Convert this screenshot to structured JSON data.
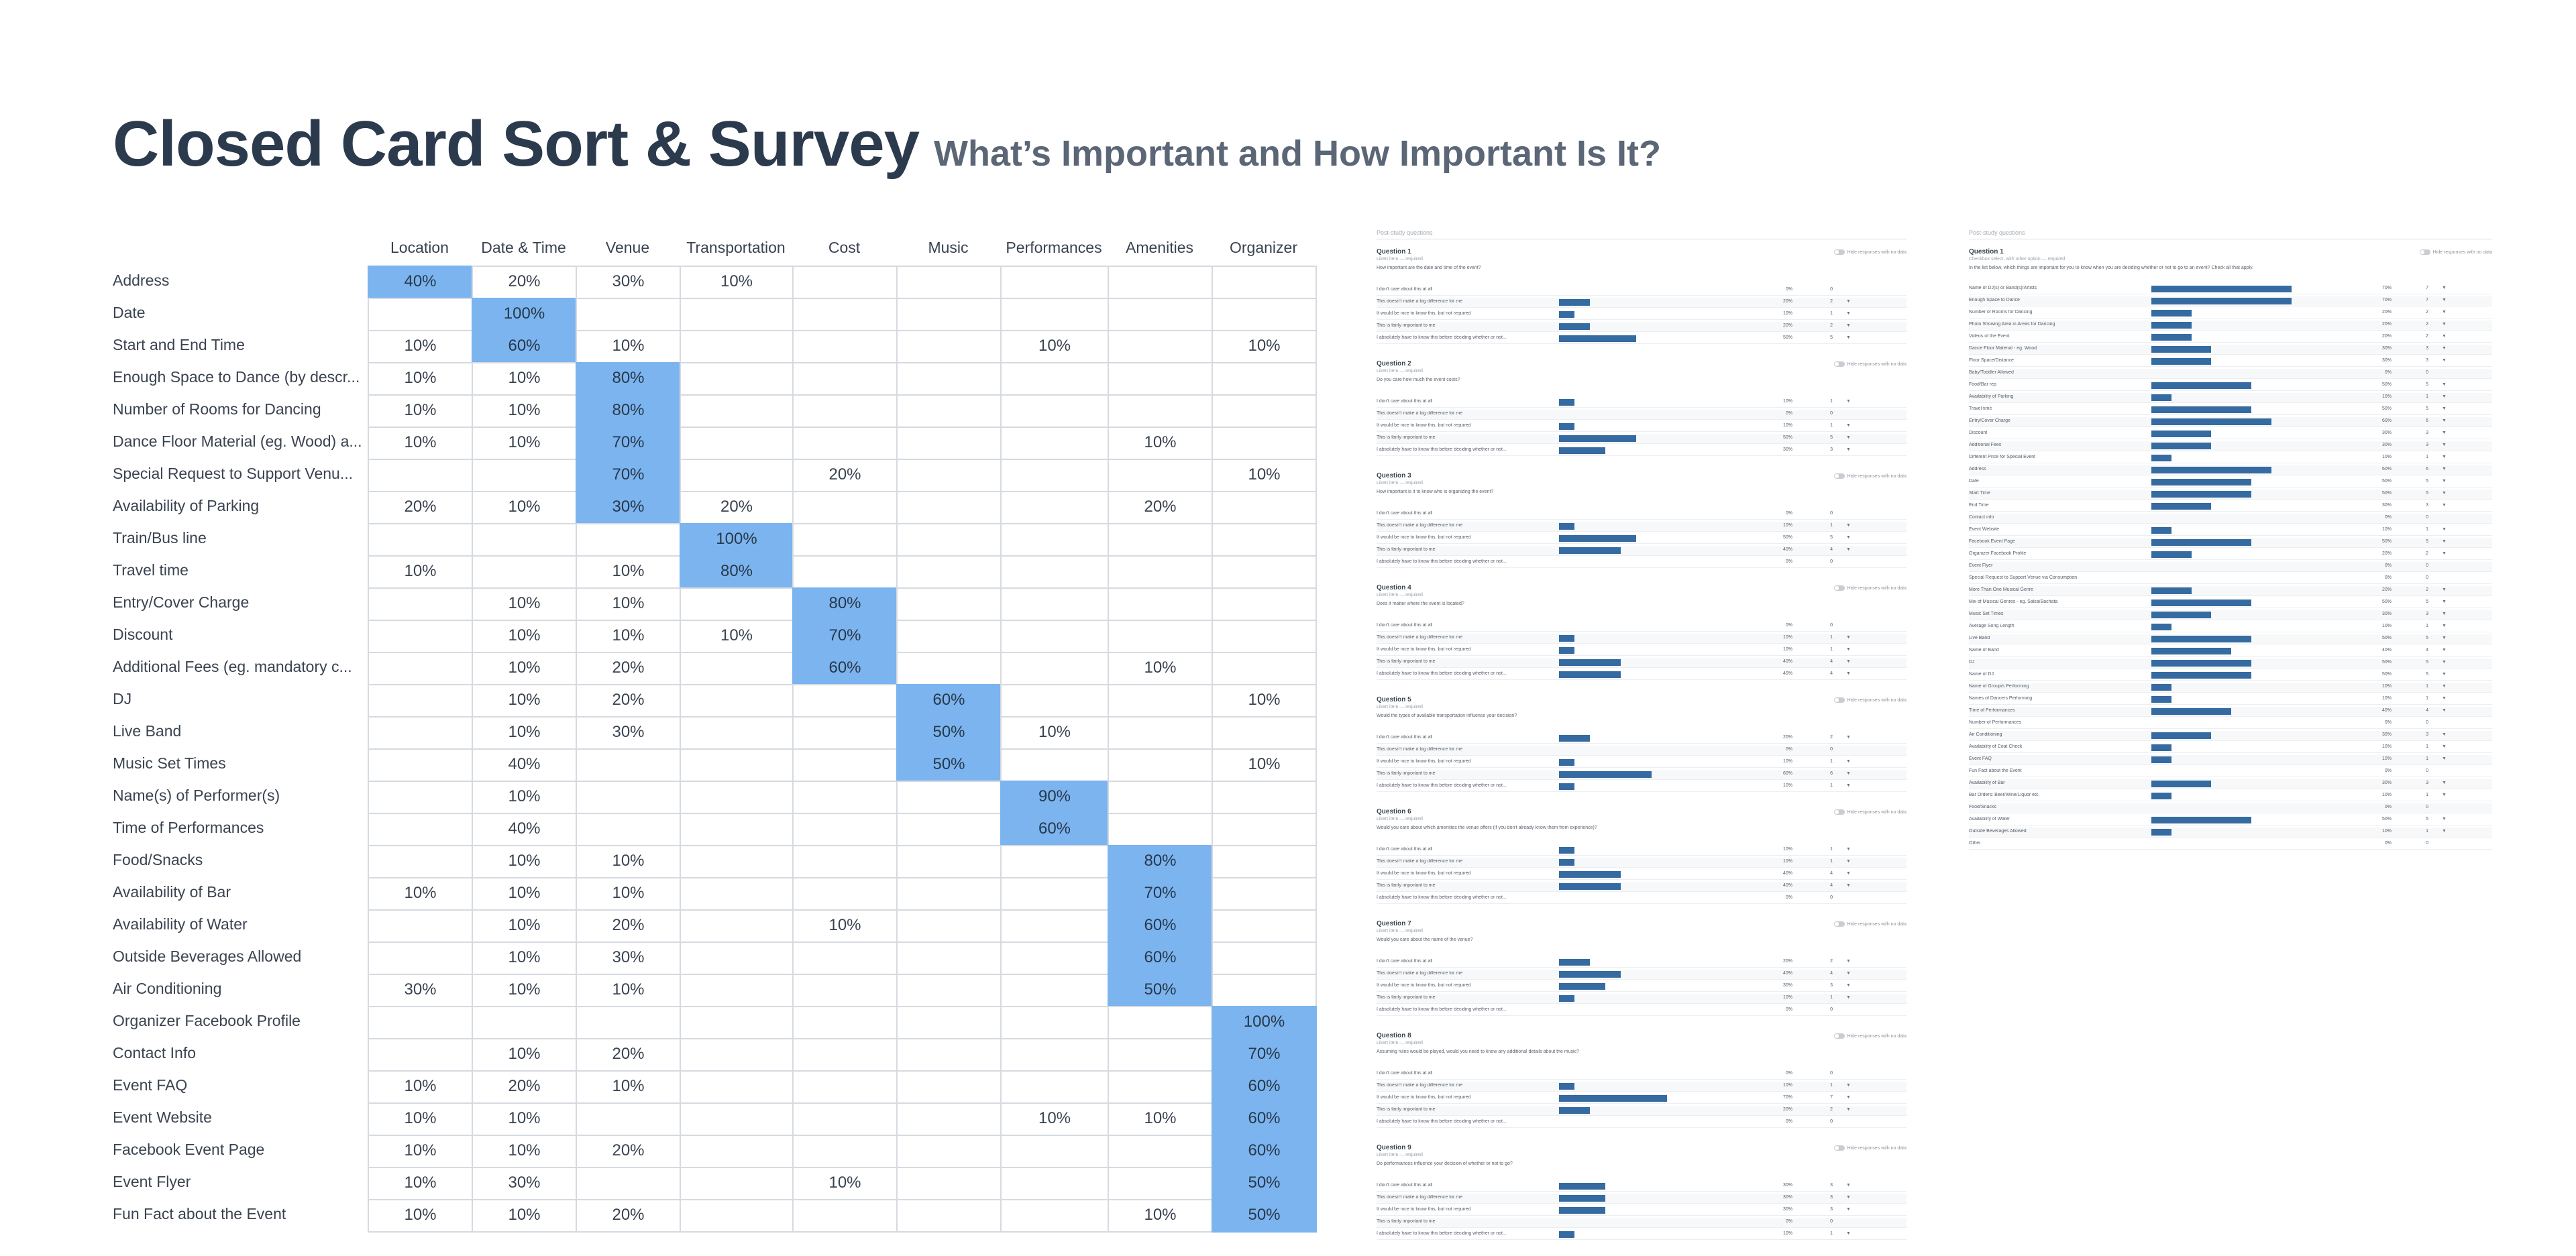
{
  "title": "Closed Card Sort & Survey",
  "subtitle": "What’s Important and How Important Is It?",
  "matrix": {
    "columns": [
      "Location",
      "Date & Time",
      "Venue",
      "Transportation",
      "Cost",
      "Music",
      "Performances",
      "Amenities",
      "Organizer"
    ],
    "rows": [
      {
        "label": "Address",
        "cells": [
          "40%",
          "20%",
          "30%",
          "10%",
          "",
          "",
          "",
          "",
          ""
        ],
        "hi": 0
      },
      {
        "label": "Date",
        "cells": [
          "",
          "100%",
          "",
          "",
          "",
          "",
          "",
          "",
          ""
        ],
        "hi": 1
      },
      {
        "label": "Start and End Time",
        "cells": [
          "10%",
          "60%",
          "10%",
          "",
          "",
          "",
          "10%",
          "",
          "10%"
        ],
        "hi": 1
      },
      {
        "label": "Enough Space to Dance (by descr...",
        "cells": [
          "10%",
          "10%",
          "80%",
          "",
          "",
          "",
          "",
          "",
          ""
        ],
        "hi": 2
      },
      {
        "label": "Number of Rooms for Dancing",
        "cells": [
          "10%",
          "10%",
          "80%",
          "",
          "",
          "",
          "",
          "",
          ""
        ],
        "hi": 2
      },
      {
        "label": "Dance Floor Material (eg. Wood) a...",
        "cells": [
          "10%",
          "10%",
          "70%",
          "",
          "",
          "",
          "",
          "10%",
          ""
        ],
        "hi": 2
      },
      {
        "label": "Special Request to Support Venu...",
        "cells": [
          "",
          "",
          "70%",
          "",
          "20%",
          "",
          "",
          "",
          "10%"
        ],
        "hi": 2
      },
      {
        "label": "Availability of Parking",
        "cells": [
          "20%",
          "10%",
          "30%",
          "20%",
          "",
          "",
          "",
          "20%",
          ""
        ],
        "hi": 2
      },
      {
        "label": "Train/Bus line",
        "cells": [
          "",
          "",
          "",
          "100%",
          "",
          "",
          "",
          "",
          ""
        ],
        "hi": 3
      },
      {
        "label": "Travel time",
        "cells": [
          "10%",
          "",
          "10%",
          "80%",
          "",
          "",
          "",
          "",
          ""
        ],
        "hi": 3
      },
      {
        "label": "Entry/Cover Charge",
        "cells": [
          "",
          "10%",
          "10%",
          "",
          "80%",
          "",
          "",
          "",
          ""
        ],
        "hi": 4
      },
      {
        "label": "Discount",
        "cells": [
          "",
          "10%",
          "10%",
          "10%",
          "70%",
          "",
          "",
          "",
          ""
        ],
        "hi": 4
      },
      {
        "label": "Additional Fees (eg. mandatory c...",
        "cells": [
          "",
          "10%",
          "20%",
          "",
          "60%",
          "",
          "",
          "10%",
          ""
        ],
        "hi": 4
      },
      {
        "label": "DJ",
        "cells": [
          "",
          "10%",
          "20%",
          "",
          "",
          "60%",
          "",
          "",
          "10%"
        ],
        "hi": 5
      },
      {
        "label": "Live Band",
        "cells": [
          "",
          "10%",
          "30%",
          "",
          "",
          "50%",
          "10%",
          "",
          ""
        ],
        "hi": 5
      },
      {
        "label": "Music Set Times",
        "cells": [
          "",
          "40%",
          "",
          "",
          "",
          "50%",
          "",
          "",
          "10%"
        ],
        "hi": 5
      },
      {
        "label": "Name(s) of Performer(s)",
        "cells": [
          "",
          "10%",
          "",
          "",
          "",
          "",
          "90%",
          "",
          ""
        ],
        "hi": 6
      },
      {
        "label": "Time of Performances",
        "cells": [
          "",
          "40%",
          "",
          "",
          "",
          "",
          "60%",
          "",
          ""
        ],
        "hi": 6
      },
      {
        "label": "Food/Snacks",
        "cells": [
          "",
          "10%",
          "10%",
          "",
          "",
          "",
          "",
          "80%",
          ""
        ],
        "hi": 7
      },
      {
        "label": "Availability of Bar",
        "cells": [
          "10%",
          "10%",
          "10%",
          "",
          "",
          "",
          "",
          "70%",
          ""
        ],
        "hi": 7
      },
      {
        "label": "Availability of Water",
        "cells": [
          "",
          "10%",
          "20%",
          "",
          "10%",
          "",
          "",
          "60%",
          ""
        ],
        "hi": 7
      },
      {
        "label": "Outside Beverages Allowed",
        "cells": [
          "",
          "10%",
          "30%",
          "",
          "",
          "",
          "",
          "60%",
          ""
        ],
        "hi": 7
      },
      {
        "label": "Air Conditioning",
        "cells": [
          "30%",
          "10%",
          "10%",
          "",
          "",
          "",
          "",
          "50%",
          ""
        ],
        "hi": 7
      },
      {
        "label": "Organizer Facebook Profile",
        "cells": [
          "",
          "",
          "",
          "",
          "",
          "",
          "",
          "",
          "100%"
        ],
        "hi": 8
      },
      {
        "label": "Contact Info",
        "cells": [
          "",
          "10%",
          "20%",
          "",
          "",
          "",
          "",
          "",
          "70%"
        ],
        "hi": 8
      },
      {
        "label": "Event FAQ",
        "cells": [
          "10%",
          "20%",
          "10%",
          "",
          "",
          "",
          "",
          "",
          "60%"
        ],
        "hi": 8
      },
      {
        "label": "Event Website",
        "cells": [
          "10%",
          "10%",
          "",
          "",
          "",
          "",
          "10%",
          "10%",
          "60%"
        ],
        "hi": 8
      },
      {
        "label": "Facebook Event Page",
        "cells": [
          "10%",
          "10%",
          "20%",
          "",
          "",
          "",
          "",
          "",
          "60%"
        ],
        "hi": 8
      },
      {
        "label": "Event Flyer",
        "cells": [
          "10%",
          "30%",
          "",
          "",
          "10%",
          "",
          "",
          "",
          "50%"
        ],
        "hi": 8
      },
      {
        "label": "Fun Fact about the Event",
        "cells": [
          "10%",
          "10%",
          "20%",
          "",
          "",
          "",
          "",
          "10%",
          "50%"
        ],
        "hi": 8
      }
    ]
  },
  "survey_panel": {
    "header": "Post-study questions",
    "toggle_label": "Hide responses with no data",
    "answer_labels": [
      "I don't care about this at all",
      "This doesn't make a big difference for me",
      "It would be nice to know this, but not required",
      "This is fairly important to me",
      "I absolutely have to know this before deciding whether or not..."
    ],
    "questions": [
      {
        "title": "Question 1",
        "meta": "Likert item — required",
        "text": "How important are the date and time of the event?",
        "pct": [
          0,
          20,
          10,
          20,
          50
        ],
        "pct_text": [
          "0%",
          "20%",
          "10%",
          "20%",
          "50%"
        ],
        "cnt": [
          "0",
          "2",
          "1",
          "2",
          "5"
        ]
      },
      {
        "title": "Question 2",
        "meta": "Likert item — required",
        "text": "Do you care how much the event costs?",
        "pct": [
          10,
          0,
          10,
          50,
          30
        ],
        "pct_text": [
          "10%",
          "0%",
          "10%",
          "50%",
          "30%"
        ],
        "cnt": [
          "1",
          "0",
          "1",
          "5",
          "3"
        ]
      },
      {
        "title": "Question 3",
        "meta": "Likert item — required",
        "text": "How important is it to know who is organizing the event?",
        "pct": [
          0,
          10,
          50,
          40,
          0
        ],
        "pct_text": [
          "0%",
          "10%",
          "50%",
          "40%",
          "0%"
        ],
        "cnt": [
          "0",
          "1",
          "5",
          "4",
          "0"
        ]
      },
      {
        "title": "Question 4",
        "meta": "Likert item — required",
        "text": "Does it matter where the event is located?",
        "pct": [
          0,
          10,
          10,
          40,
          40
        ],
        "pct_text": [
          "0%",
          "10%",
          "10%",
          "40%",
          "40%"
        ],
        "cnt": [
          "0",
          "1",
          "1",
          "4",
          "4"
        ]
      },
      {
        "title": "Question 5",
        "meta": "Likert item — required",
        "text": "Would the types of available transportation influence your decision?",
        "pct": [
          20,
          0,
          10,
          60,
          10
        ],
        "pct_text": [
          "20%",
          "0%",
          "10%",
          "60%",
          "10%"
        ],
        "cnt": [
          "2",
          "0",
          "1",
          "6",
          "1"
        ]
      },
      {
        "title": "Question 6",
        "meta": "Likert item — required",
        "text": "Would you care about which amenities the venue offers (if you don't already know them from experience)?",
        "pct": [
          10,
          10,
          40,
          40,
          0
        ],
        "pct_text": [
          "10%",
          "10%",
          "40%",
          "40%",
          "0%"
        ],
        "cnt": [
          "1",
          "1",
          "4",
          "4",
          "0"
        ]
      },
      {
        "title": "Question 7",
        "meta": "Likert item — required",
        "text": "Would you care about the name of the venue?",
        "pct": [
          20,
          40,
          30,
          10,
          0
        ],
        "pct_text": [
          "20%",
          "40%",
          "30%",
          "10%",
          "0%"
        ],
        "cnt": [
          "2",
          "4",
          "3",
          "1",
          "0"
        ]
      },
      {
        "title": "Question 8",
        "meta": "Likert item — required",
        "text": "Assuming rules would be played, would you need to know any additional details about the music?",
        "pct": [
          0,
          10,
          70,
          20,
          0
        ],
        "pct_text": [
          "0%",
          "10%",
          "70%",
          "20%",
          "0%"
        ],
        "cnt": [
          "0",
          "1",
          "7",
          "2",
          "0"
        ]
      },
      {
        "title": "Question 9",
        "meta": "Likert item — required",
        "text": "Do performances influence your decision of whether or not to go?",
        "pct": [
          30,
          30,
          30,
          0,
          10
        ],
        "pct_text": [
          "30%",
          "30%",
          "30%",
          "0%",
          "10%"
        ],
        "cnt": [
          "3",
          "3",
          "3",
          "0",
          "1"
        ]
      }
    ]
  },
  "ranking_panel": {
    "header": "Post-study questions",
    "toggle_label": "Hide responses with no data",
    "title": "Question 1",
    "meta": "Checkbox select, with other option — required",
    "text": "In the list below, which things are important for you to know when you are deciding whether or not to go to an event? Check all that apply.",
    "items": [
      {
        "label": "Name of DJ(s) or Band(s)/Artists",
        "pct": 70,
        "pct_text": "70%",
        "cnt": "7"
      },
      {
        "label": "Enough Space to Dance",
        "pct": 70,
        "pct_text": "70%",
        "cnt": "7"
      },
      {
        "label": "Number of Rooms for Dancing",
        "pct": 20,
        "pct_text": "20%",
        "cnt": "2"
      },
      {
        "label": "Photo Showing Area in Areas for Dancing",
        "pct": 20,
        "pct_text": "20%",
        "cnt": "2"
      },
      {
        "label": "Videos of the Event",
        "pct": 20,
        "pct_text": "20%",
        "cnt": "2"
      },
      {
        "label": "Dance Floor Material - eg. Wood",
        "pct": 30,
        "pct_text": "30%",
        "cnt": "3"
      },
      {
        "label": "Floor Space/Distance",
        "pct": 30,
        "pct_text": "30%",
        "cnt": "3"
      },
      {
        "label": "Baby/Toddler Allowed",
        "pct": 0,
        "pct_text": "0%",
        "cnt": "0"
      },
      {
        "label": "Food/Bar rep",
        "pct": 50,
        "pct_text": "50%",
        "cnt": "5"
      },
      {
        "label": "Availability of Parking",
        "pct": 10,
        "pct_text": "10%",
        "cnt": "1"
      },
      {
        "label": "Travel time",
        "pct": 50,
        "pct_text": "50%",
        "cnt": "5"
      },
      {
        "label": "Entry/Cover Charge",
        "pct": 60,
        "pct_text": "60%",
        "cnt": "6"
      },
      {
        "label": "Discount",
        "pct": 30,
        "pct_text": "30%",
        "cnt": "3"
      },
      {
        "label": "Additional Fees",
        "pct": 30,
        "pct_text": "30%",
        "cnt": "3"
      },
      {
        "label": "Different Price for Special Event",
        "pct": 10,
        "pct_text": "10%",
        "cnt": "1"
      },
      {
        "label": "Address",
        "pct": 60,
        "pct_text": "60%",
        "cnt": "6"
      },
      {
        "label": "Date",
        "pct": 50,
        "pct_text": "50%",
        "cnt": "5"
      },
      {
        "label": "Start Time",
        "pct": 50,
        "pct_text": "50%",
        "cnt": "5"
      },
      {
        "label": "End Time",
        "pct": 30,
        "pct_text": "30%",
        "cnt": "3"
      },
      {
        "label": "Contact info",
        "pct": 0,
        "pct_text": "0%",
        "cnt": "0"
      },
      {
        "label": "Event Website",
        "pct": 10,
        "pct_text": "10%",
        "cnt": "1"
      },
      {
        "label": "Facebook Event Page",
        "pct": 50,
        "pct_text": "50%",
        "cnt": "5"
      },
      {
        "label": "Organizer Facebook Profile",
        "pct": 20,
        "pct_text": "20%",
        "cnt": "2"
      },
      {
        "label": "Event Flyer",
        "pct": 0,
        "pct_text": "0%",
        "cnt": "0"
      },
      {
        "label": "Special Request to Support Venue via Consumption",
        "pct": 0,
        "pct_text": "0%",
        "cnt": "0"
      },
      {
        "label": "More Than One Musical Genre",
        "pct": 20,
        "pct_text": "20%",
        "cnt": "2"
      },
      {
        "label": "Mix of Musical Genres - eg. Salsa/Bachata",
        "pct": 50,
        "pct_text": "50%",
        "cnt": "5"
      },
      {
        "label": "Music Set Times",
        "pct": 30,
        "pct_text": "30%",
        "cnt": "3"
      },
      {
        "label": "Average Song Length",
        "pct": 10,
        "pct_text": "10%",
        "cnt": "1"
      },
      {
        "label": "Live Band",
        "pct": 50,
        "pct_text": "50%",
        "cnt": "5"
      },
      {
        "label": "Name of Band",
        "pct": 40,
        "pct_text": "40%",
        "cnt": "4"
      },
      {
        "label": "DJ",
        "pct": 50,
        "pct_text": "50%",
        "cnt": "5"
      },
      {
        "label": "Name of DJ",
        "pct": 50,
        "pct_text": "50%",
        "cnt": "5"
      },
      {
        "label": "Name of Group/s Performing",
        "pct": 10,
        "pct_text": "10%",
        "cnt": "1"
      },
      {
        "label": "Names of Dancers Performing",
        "pct": 10,
        "pct_text": "10%",
        "cnt": "1"
      },
      {
        "label": "Time of Performances",
        "pct": 40,
        "pct_text": "40%",
        "cnt": "4"
      },
      {
        "label": "Number of Performances",
        "pct": 0,
        "pct_text": "0%",
        "cnt": "0"
      },
      {
        "label": "Air Conditioning",
        "pct": 30,
        "pct_text": "30%",
        "cnt": "3"
      },
      {
        "label": "Availability of Coat Check",
        "pct": 10,
        "pct_text": "10%",
        "cnt": "1"
      },
      {
        "label": "Event FAQ",
        "pct": 10,
        "pct_text": "10%",
        "cnt": "1"
      },
      {
        "label": "Fun Fact about the Event",
        "pct": 0,
        "pct_text": "0%",
        "cnt": "0"
      },
      {
        "label": "Availability of Bar",
        "pct": 30,
        "pct_text": "30%",
        "cnt": "3"
      },
      {
        "label": "Bar Orders: Beer/Wine/Liquor etc.",
        "pct": 10,
        "pct_text": "10%",
        "cnt": "1"
      },
      {
        "label": "Food/Snacks",
        "pct": 0,
        "pct_text": "0%",
        "cnt": "0"
      },
      {
        "label": "Availability of Water",
        "pct": 50,
        "pct_text": "50%",
        "cnt": "5"
      },
      {
        "label": "Outside Beverages Allowed",
        "pct": 10,
        "pct_text": "10%",
        "cnt": "1"
      },
      {
        "label": "Other",
        "pct": 0,
        "pct_text": "0%",
        "cnt": "0"
      }
    ]
  }
}
